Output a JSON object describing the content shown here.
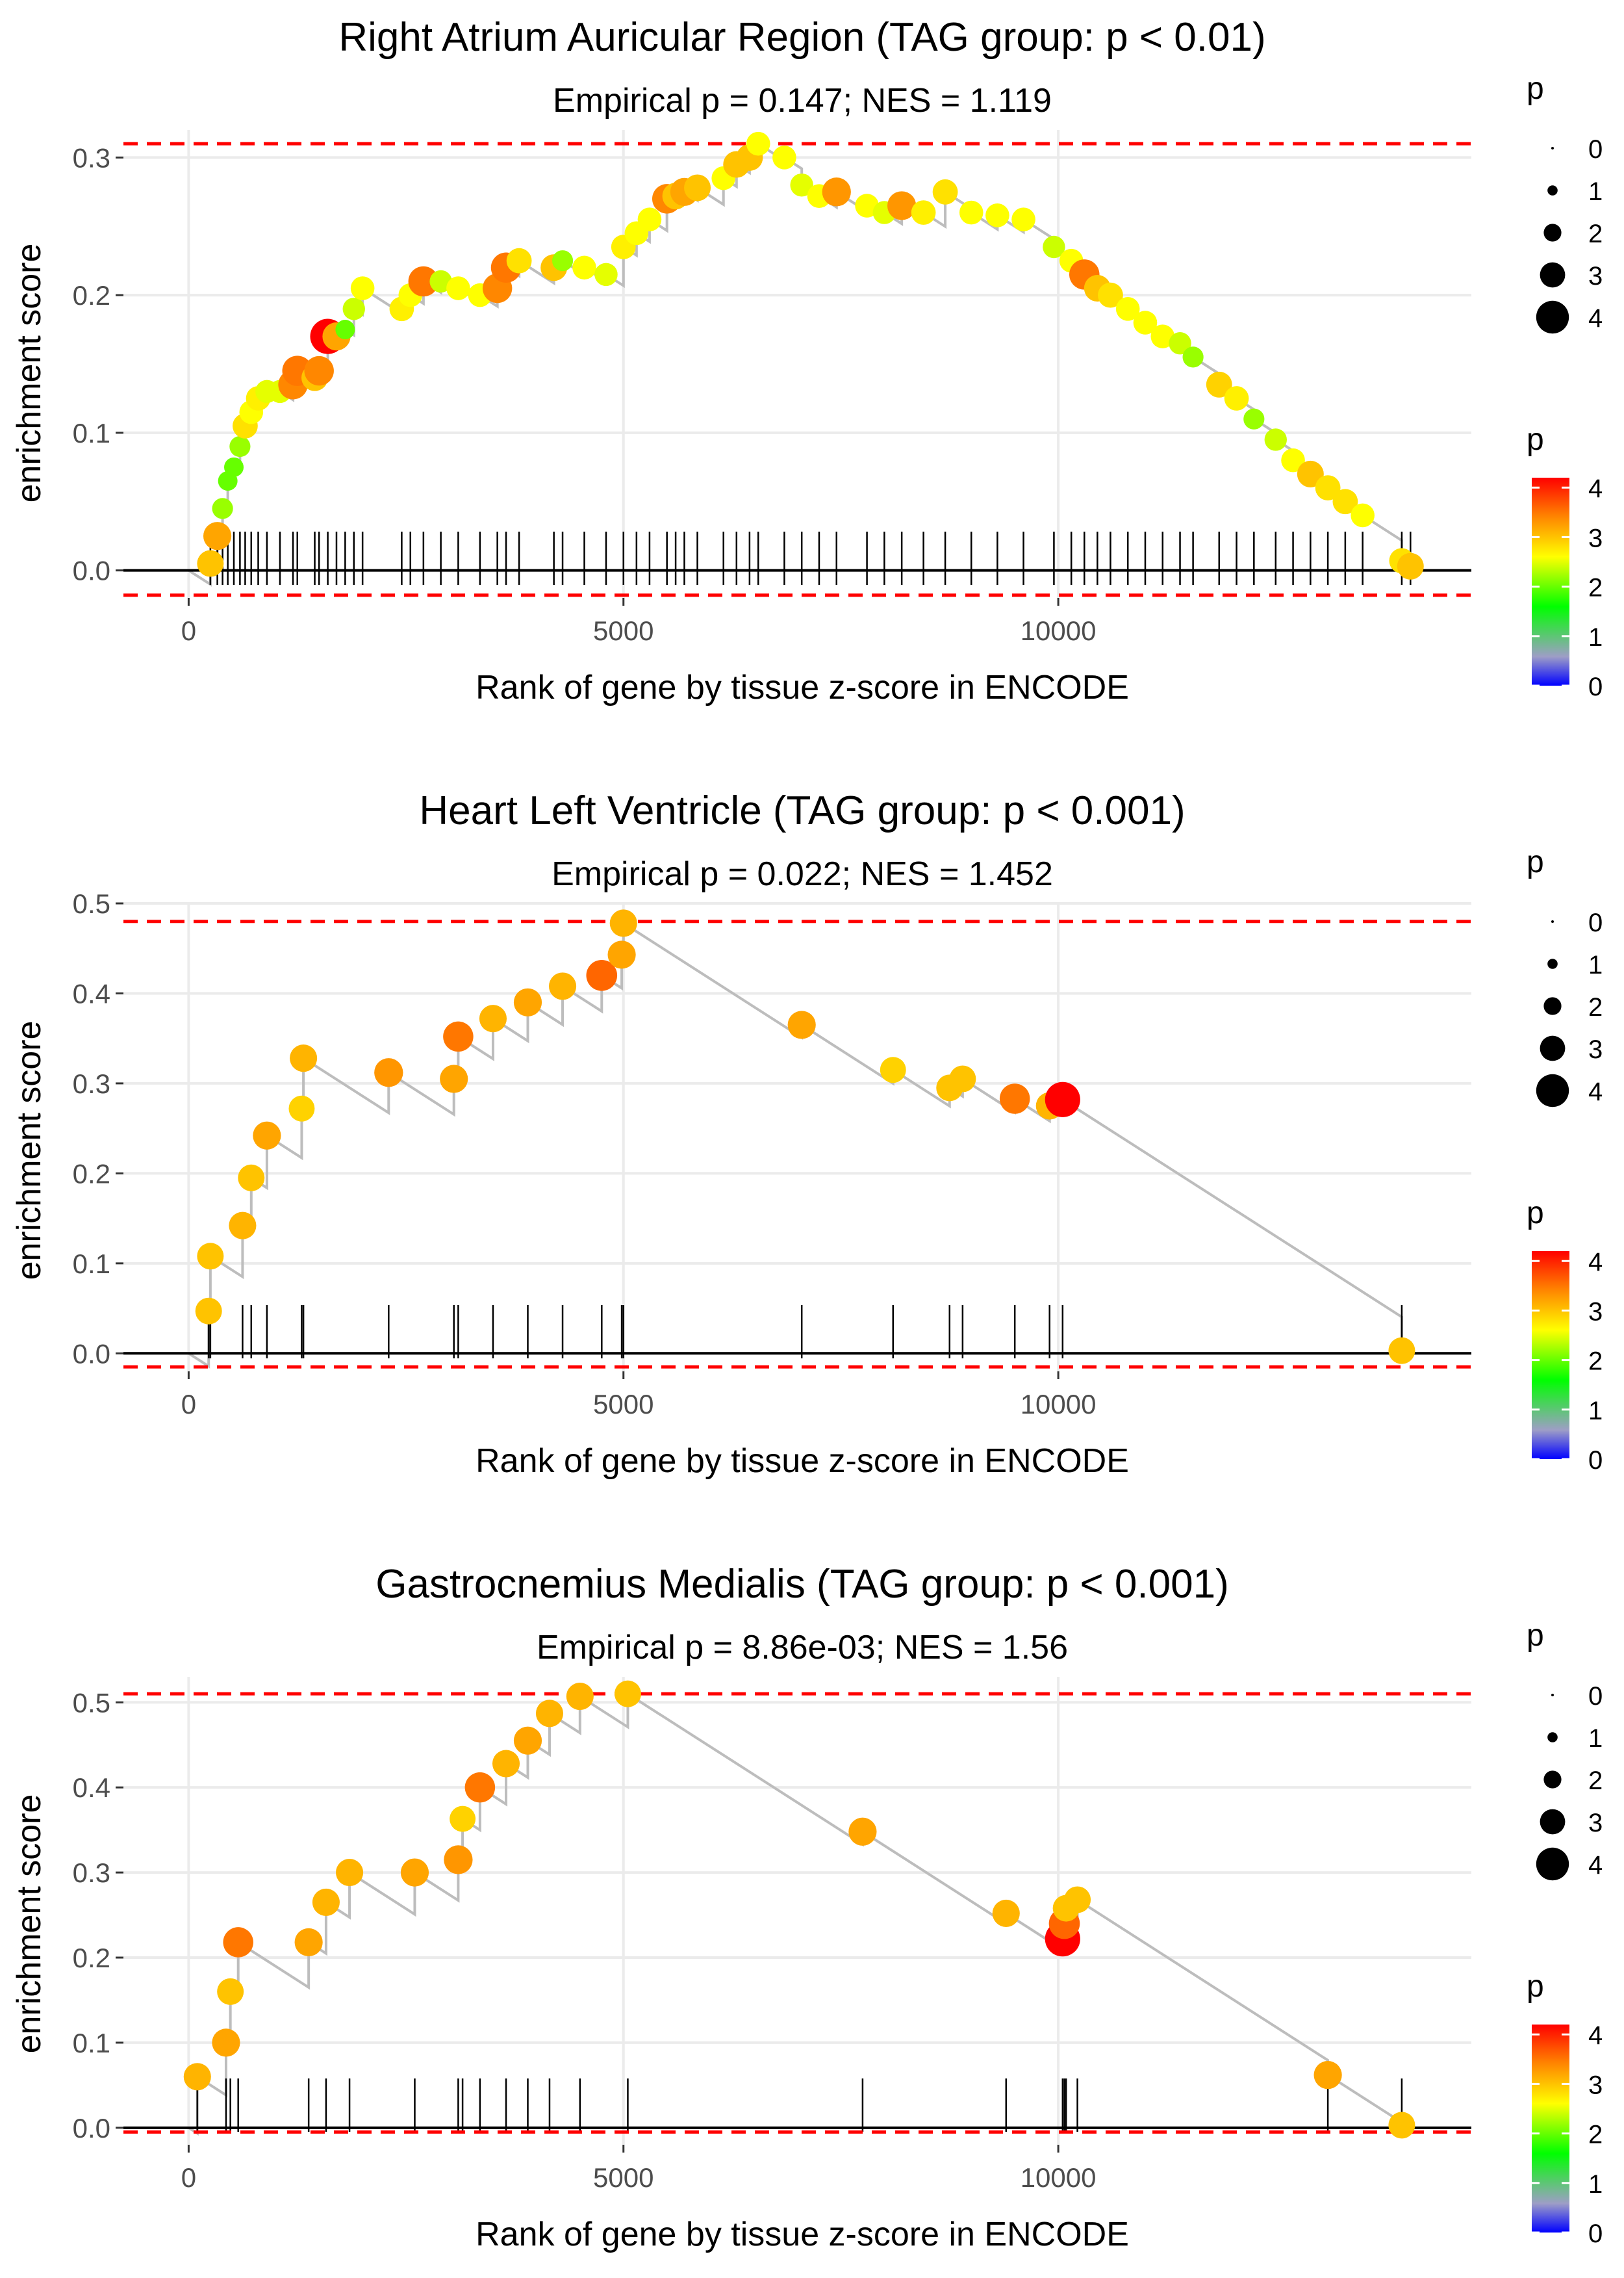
{
  "colors": {
    "grid": "#ebebeb",
    "line": "#bdbdbd",
    "baseline": "#000000",
    "threshold": "#ff0000",
    "tick": "#000000",
    "gradient": [
      "#0000ff",
      "#9e9ec6",
      "#00ff00",
      "#ffff00",
      "#ff8000",
      "#ff0000"
    ]
  },
  "chart_data": [
    {
      "type": "scatter",
      "title": "Right Atrium Auricular Region (TAG group: p < 0.01)",
      "subtitle": "Empirical p = 0.147; NES = 1.119",
      "xlabel": "Rank of gene by tissue z-score in ENCODE",
      "ylabel": "enrichment score",
      "xlim": [
        -750,
        14750
      ],
      "ylim": [
        -0.02,
        0.32
      ],
      "xticks": [
        0,
        5000,
        10000
      ],
      "xtick_labels": [
        "0",
        "5000",
        "10000"
      ],
      "yticks": [
        0.0,
        0.1,
        0.2,
        0.3
      ],
      "ytick_labels": [
        "0.0",
        "0.1",
        "0.2",
        "0.3"
      ],
      "max_line": 0.31,
      "min_line": -0.018,
      "legend_size": {
        "title": "p",
        "values": [
          0,
          1,
          2,
          3,
          4
        ],
        "labels": [
          "0",
          "1",
          "2",
          "3",
          "4"
        ]
      },
      "legend_color": {
        "title": "p",
        "values": [
          0,
          1,
          2,
          3,
          4
        ],
        "labels": [
          "0",
          "1",
          "2",
          "3",
          "4"
        ]
      },
      "points": [
        {
          "x": 250,
          "y": 0.005,
          "p": 3.0
        },
        {
          "x": 330,
          "y": 0.025,
          "p": 3.2
        },
        {
          "x": 390,
          "y": 0.045,
          "p": 2.2
        },
        {
          "x": 450,
          "y": 0.065,
          "p": 2.0
        },
        {
          "x": 520,
          "y": 0.075,
          "p": 2.0
        },
        {
          "x": 590,
          "y": 0.09,
          "p": 2.2
        },
        {
          "x": 650,
          "y": 0.105,
          "p": 2.8
        },
        {
          "x": 720,
          "y": 0.115,
          "p": 2.6
        },
        {
          "x": 800,
          "y": 0.125,
          "p": 2.7
        },
        {
          "x": 900,
          "y": 0.13,
          "p": 2.5
        },
        {
          "x": 1050,
          "y": 0.13,
          "p": 2.5
        },
        {
          "x": 1200,
          "y": 0.135,
          "p": 3.4
        },
        {
          "x": 1250,
          "y": 0.145,
          "p": 3.5
        },
        {
          "x": 1450,
          "y": 0.14,
          "p": 3.0
        },
        {
          "x": 1500,
          "y": 0.145,
          "p": 3.4
        },
        {
          "x": 1600,
          "y": 0.17,
          "p": 4.2
        },
        {
          "x": 1700,
          "y": 0.17,
          "p": 3.2
        },
        {
          "x": 1800,
          "y": 0.175,
          "p": 2.0
        },
        {
          "x": 1900,
          "y": 0.19,
          "p": 2.4
        },
        {
          "x": 2000,
          "y": 0.205,
          "p": 2.6
        },
        {
          "x": 2450,
          "y": 0.19,
          "p": 2.7
        },
        {
          "x": 2550,
          "y": 0.2,
          "p": 2.6
        },
        {
          "x": 2700,
          "y": 0.21,
          "p": 3.5
        },
        {
          "x": 2900,
          "y": 0.21,
          "p": 2.4
        },
        {
          "x": 3100,
          "y": 0.205,
          "p": 2.6
        },
        {
          "x": 3350,
          "y": 0.2,
          "p": 2.6
        },
        {
          "x": 3550,
          "y": 0.205,
          "p": 3.4
        },
        {
          "x": 3650,
          "y": 0.22,
          "p": 3.5
        },
        {
          "x": 3800,
          "y": 0.225,
          "p": 2.8
        },
        {
          "x": 4200,
          "y": 0.22,
          "p": 3.0
        },
        {
          "x": 4300,
          "y": 0.225,
          "p": 2.2
        },
        {
          "x": 4550,
          "y": 0.22,
          "p": 2.6
        },
        {
          "x": 4800,
          "y": 0.215,
          "p": 2.5
        },
        {
          "x": 5000,
          "y": 0.235,
          "p": 2.7
        },
        {
          "x": 5150,
          "y": 0.245,
          "p": 2.6
        },
        {
          "x": 5300,
          "y": 0.255,
          "p": 2.6
        },
        {
          "x": 5500,
          "y": 0.27,
          "p": 3.4
        },
        {
          "x": 5600,
          "y": 0.272,
          "p": 3.0
        },
        {
          "x": 5700,
          "y": 0.275,
          "p": 3.2
        },
        {
          "x": 5850,
          "y": 0.278,
          "p": 3.0
        },
        {
          "x": 6150,
          "y": 0.285,
          "p": 2.6
        },
        {
          "x": 6300,
          "y": 0.295,
          "p": 3.0
        },
        {
          "x": 6450,
          "y": 0.3,
          "p": 3.0
        },
        {
          "x": 6550,
          "y": 0.31,
          "p": 2.6
        },
        {
          "x": 6850,
          "y": 0.3,
          "p": 2.6
        },
        {
          "x": 7050,
          "y": 0.28,
          "p": 2.5
        },
        {
          "x": 7250,
          "y": 0.272,
          "p": 2.6
        },
        {
          "x": 7450,
          "y": 0.275,
          "p": 3.3
        },
        {
          "x": 7800,
          "y": 0.265,
          "p": 2.6
        },
        {
          "x": 8000,
          "y": 0.26,
          "p": 2.5
        },
        {
          "x": 8200,
          "y": 0.265,
          "p": 3.3
        },
        {
          "x": 8450,
          "y": 0.26,
          "p": 2.7
        },
        {
          "x": 8700,
          "y": 0.275,
          "p": 2.8
        },
        {
          "x": 9000,
          "y": 0.26,
          "p": 2.6
        },
        {
          "x": 9300,
          "y": 0.258,
          "p": 2.6
        },
        {
          "x": 9600,
          "y": 0.255,
          "p": 2.6
        },
        {
          "x": 9950,
          "y": 0.235,
          "p": 2.4
        },
        {
          "x": 10150,
          "y": 0.225,
          "p": 2.6
        },
        {
          "x": 10300,
          "y": 0.215,
          "p": 3.5
        },
        {
          "x": 10450,
          "y": 0.205,
          "p": 3.0
        },
        {
          "x": 10600,
          "y": 0.2,
          "p": 2.8
        },
        {
          "x": 10800,
          "y": 0.19,
          "p": 2.6
        },
        {
          "x": 11000,
          "y": 0.18,
          "p": 2.6
        },
        {
          "x": 11200,
          "y": 0.17,
          "p": 2.6
        },
        {
          "x": 11400,
          "y": 0.165,
          "p": 2.4
        },
        {
          "x": 11550,
          "y": 0.155,
          "p": 2.2
        },
        {
          "x": 11850,
          "y": 0.135,
          "p": 2.9
        },
        {
          "x": 12050,
          "y": 0.125,
          "p": 2.7
        },
        {
          "x": 12250,
          "y": 0.11,
          "p": 2.2
        },
        {
          "x": 12500,
          "y": 0.095,
          "p": 2.4
        },
        {
          "x": 12700,
          "y": 0.08,
          "p": 2.6
        },
        {
          "x": 12900,
          "y": 0.07,
          "p": 3.0
        },
        {
          "x": 13100,
          "y": 0.06,
          "p": 2.8
        },
        {
          "x": 13300,
          "y": 0.05,
          "p": 2.8
        },
        {
          "x": 13500,
          "y": 0.04,
          "p": 2.6
        },
        {
          "x": 13950,
          "y": 0.007,
          "p": 2.8
        },
        {
          "x": 14050,
          "y": 0.003,
          "p": 3.0
        }
      ],
      "rug": [
        250,
        330,
        390,
        450,
        520,
        590,
        650,
        720,
        800,
        900,
        1050,
        1200,
        1250,
        1450,
        1500,
        1600,
        1700,
        1800,
        1900,
        2000,
        2450,
        2550,
        2700,
        2900,
        3100,
        3350,
        3550,
        3650,
        3800,
        4200,
        4300,
        4550,
        4800,
        5000,
        5150,
        5300,
        5500,
        5600,
        5700,
        5850,
        6150,
        6300,
        6450,
        6550,
        6850,
        7050,
        7250,
        7450,
        7800,
        8000,
        8200,
        8450,
        8700,
        9000,
        9300,
        9600,
        9950,
        10150,
        10300,
        10450,
        10600,
        10800,
        11000,
        11200,
        11400,
        11550,
        11850,
        12050,
        12250,
        12500,
        12700,
        12900,
        13100,
        13300,
        13500,
        13950,
        14050
      ]
    },
    {
      "type": "scatter",
      "title": "Heart Left Ventricle (TAG group: p < 0.001)",
      "subtitle": "Empirical p = 0.022; NES = 1.452",
      "xlabel": "Rank of gene by tissue z-score in ENCODE",
      "ylabel": "enrichment score",
      "xlim": [
        -750,
        14750
      ],
      "ylim": [
        -0.02,
        0.5
      ],
      "xticks": [
        0,
        5000,
        10000
      ],
      "xtick_labels": [
        "0",
        "5000",
        "10000"
      ],
      "yticks": [
        0.0,
        0.1,
        0.2,
        0.3,
        0.4,
        0.5
      ],
      "ytick_labels": [
        "0.0",
        "0.1",
        "0.2",
        "0.3",
        "0.4",
        "0.5"
      ],
      "max_line": 0.48,
      "min_line": -0.015,
      "legend_size": {
        "title": "p",
        "values": [
          0,
          1,
          2,
          3,
          4
        ],
        "labels": [
          "0",
          "1",
          "2",
          "3",
          "4"
        ]
      },
      "legend_color": {
        "title": "p",
        "values": [
          0,
          1,
          2,
          3,
          4
        ],
        "labels": [
          "0",
          "1",
          "2",
          "3",
          "4"
        ]
      },
      "points": [
        {
          "x": 230,
          "y": 0.047,
          "p": 3.0
        },
        {
          "x": 250,
          "y": 0.108,
          "p": 3.0
        },
        {
          "x": 620,
          "y": 0.142,
          "p": 3.1
        },
        {
          "x": 720,
          "y": 0.195,
          "p": 3.0
        },
        {
          "x": 900,
          "y": 0.242,
          "p": 3.2
        },
        {
          "x": 1300,
          "y": 0.272,
          "p": 2.9
        },
        {
          "x": 1320,
          "y": 0.328,
          "p": 3.1
        },
        {
          "x": 2300,
          "y": 0.312,
          "p": 3.3
        },
        {
          "x": 3050,
          "y": 0.305,
          "p": 3.2
        },
        {
          "x": 3100,
          "y": 0.352,
          "p": 3.5
        },
        {
          "x": 3500,
          "y": 0.372,
          "p": 3.1
        },
        {
          "x": 3900,
          "y": 0.39,
          "p": 3.2
        },
        {
          "x": 4300,
          "y": 0.408,
          "p": 3.1
        },
        {
          "x": 4750,
          "y": 0.42,
          "p": 3.6
        },
        {
          "x": 4980,
          "y": 0.443,
          "p": 3.2
        },
        {
          "x": 5000,
          "y": 0.478,
          "p": 3.1
        },
        {
          "x": 7050,
          "y": 0.365,
          "p": 3.2
        },
        {
          "x": 8100,
          "y": 0.315,
          "p": 2.9
        },
        {
          "x": 8750,
          "y": 0.295,
          "p": 3.0
        },
        {
          "x": 8900,
          "y": 0.305,
          "p": 3.0
        },
        {
          "x": 9500,
          "y": 0.283,
          "p": 3.5
        },
        {
          "x": 9900,
          "y": 0.275,
          "p": 3.1
        },
        {
          "x": 10050,
          "y": 0.282,
          "p": 4.2
        },
        {
          "x": 13950,
          "y": 0.003,
          "p": 3.0
        }
      ],
      "rug": [
        230,
        250,
        620,
        720,
        900,
        1300,
        1320,
        2300,
        3050,
        3100,
        3500,
        3900,
        4300,
        4750,
        4980,
        5000,
        7050,
        8100,
        8750,
        8900,
        9500,
        9900,
        10050,
        13950
      ]
    },
    {
      "type": "scatter",
      "title": "Gastrocnemius Medialis (TAG group: p < 0.001)",
      "subtitle": "Empirical p = 8.86e-03; NES = 1.56",
      "xlabel": "Rank of gene by tissue z-score in ENCODE",
      "ylabel": "enrichment score",
      "xlim": [
        -750,
        14750
      ],
      "ylim": [
        -0.02,
        0.53
      ],
      "xticks": [
        0,
        5000,
        10000
      ],
      "xtick_labels": [
        "0",
        "5000",
        "10000"
      ],
      "yticks": [
        0.0,
        0.1,
        0.2,
        0.3,
        0.4,
        0.5
      ],
      "ytick_labels": [
        "0.0",
        "0.1",
        "0.2",
        "0.3",
        "0.4",
        "0.5"
      ],
      "max_line": 0.51,
      "min_line": -0.005,
      "legend_size": {
        "title": "p",
        "values": [
          0,
          1,
          2,
          3,
          4
        ],
        "labels": [
          "0",
          "1",
          "2",
          "3",
          "4"
        ]
      },
      "legend_color": {
        "title": "p",
        "values": [
          0,
          1,
          2,
          3,
          4
        ],
        "labels": [
          "0",
          "1",
          "2",
          "3",
          "4"
        ]
      },
      "points": [
        {
          "x": 100,
          "y": 0.06,
          "p": 3.1
        },
        {
          "x": 430,
          "y": 0.1,
          "p": 3.2
        },
        {
          "x": 480,
          "y": 0.16,
          "p": 3.0
        },
        {
          "x": 570,
          "y": 0.218,
          "p": 3.5
        },
        {
          "x": 1380,
          "y": 0.218,
          "p": 3.2
        },
        {
          "x": 1580,
          "y": 0.265,
          "p": 3.1
        },
        {
          "x": 1850,
          "y": 0.3,
          "p": 3.1
        },
        {
          "x": 2600,
          "y": 0.3,
          "p": 3.2
        },
        {
          "x": 3100,
          "y": 0.315,
          "p": 3.3
        },
        {
          "x": 3150,
          "y": 0.363,
          "p": 2.9
        },
        {
          "x": 3350,
          "y": 0.4,
          "p": 3.5
        },
        {
          "x": 3650,
          "y": 0.428,
          "p": 3.1
        },
        {
          "x": 3900,
          "y": 0.455,
          "p": 3.2
        },
        {
          "x": 4150,
          "y": 0.487,
          "p": 3.1
        },
        {
          "x": 4500,
          "y": 0.507,
          "p": 3.1
        },
        {
          "x": 5050,
          "y": 0.51,
          "p": 3.0
        },
        {
          "x": 7750,
          "y": 0.348,
          "p": 3.2
        },
        {
          "x": 9400,
          "y": 0.252,
          "p": 3.1
        },
        {
          "x": 10050,
          "y": 0.222,
          "p": 4.2
        },
        {
          "x": 10070,
          "y": 0.24,
          "p": 3.6
        },
        {
          "x": 10090,
          "y": 0.258,
          "p": 3.0
        },
        {
          "x": 10220,
          "y": 0.268,
          "p": 3.0
        },
        {
          "x": 13100,
          "y": 0.062,
          "p": 3.2
        },
        {
          "x": 13950,
          "y": 0.003,
          "p": 3.0
        }
      ],
      "rug": [
        100,
        430,
        480,
        570,
        1380,
        1580,
        1850,
        2600,
        3100,
        3150,
        3350,
        3650,
        3900,
        4150,
        4500,
        5050,
        7750,
        9400,
        10050,
        10070,
        10090,
        10220,
        13100,
        13950
      ]
    }
  ]
}
